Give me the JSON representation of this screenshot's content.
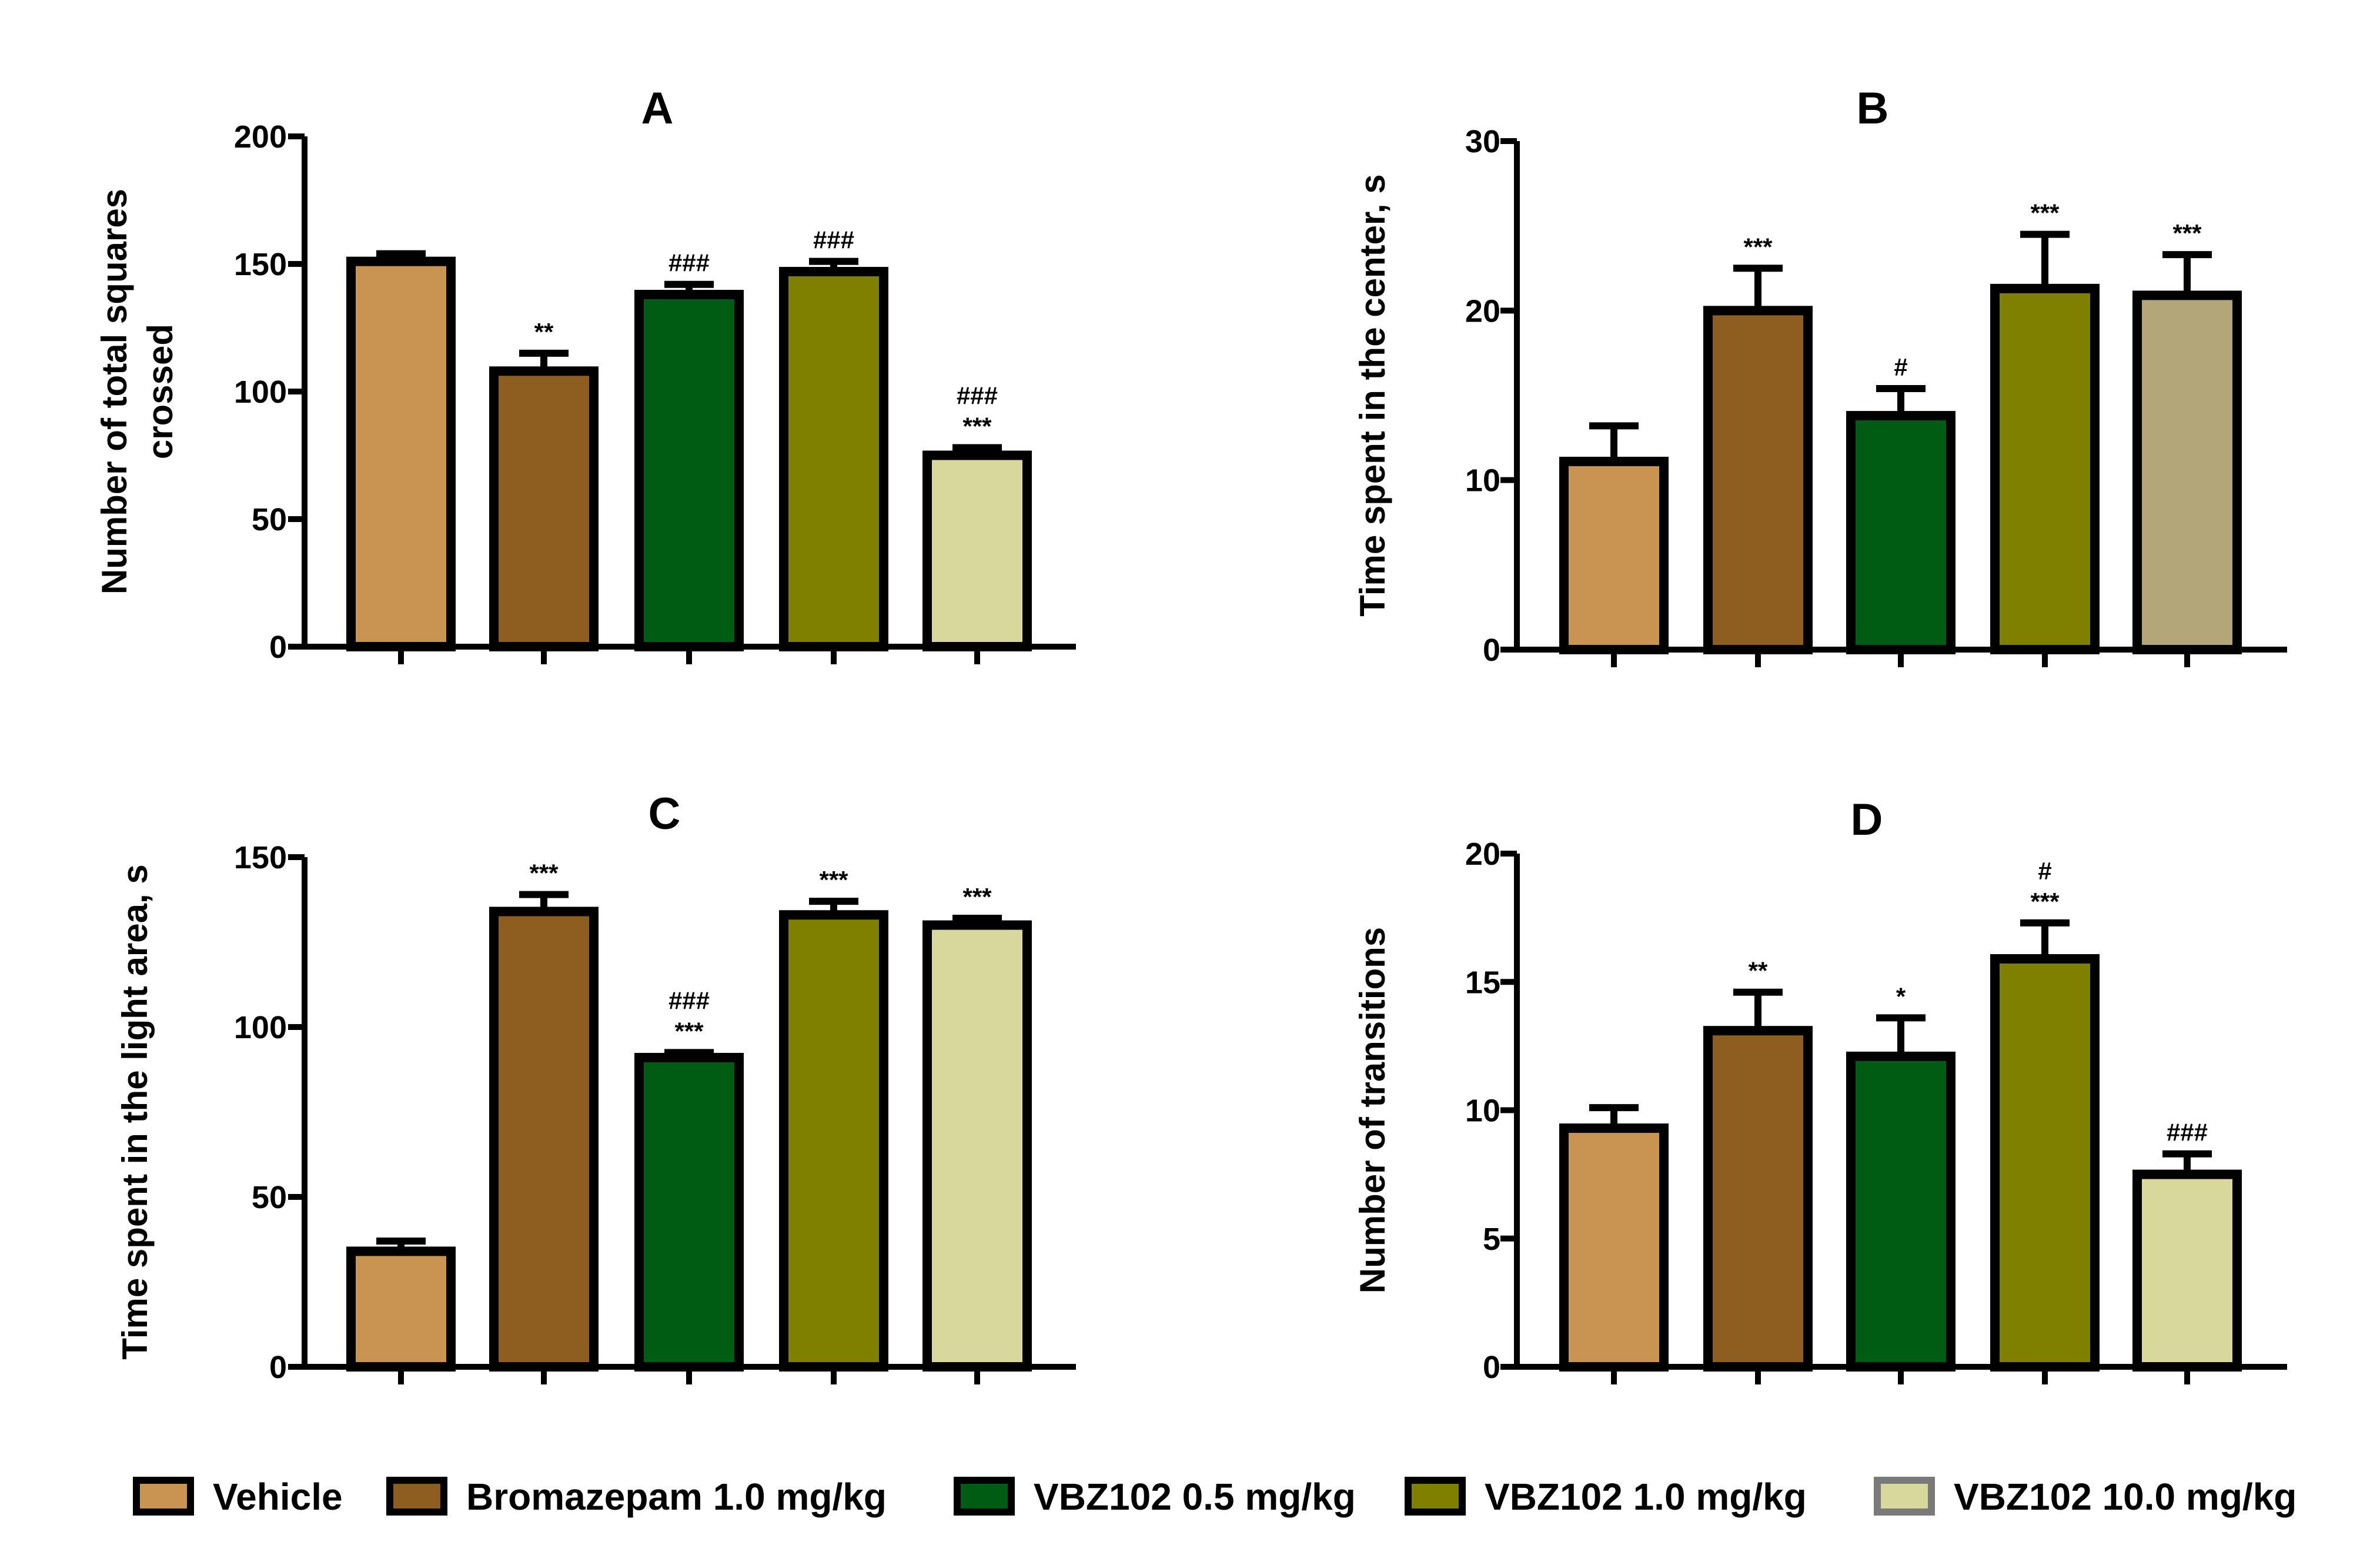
{
  "chart_data": [
    {
      "type": "bar",
      "panel": "A",
      "title": "A",
      "ylabel": [
        "Number of total squares",
        "crossed"
      ],
      "ylim": [
        0,
        200
      ],
      "yticks": [
        0,
        50,
        100,
        150,
        200
      ],
      "categories": [
        "Vehicle",
        "Bromazepam 1.0 mg/kg",
        "VBZ102 0.5 mg/kg",
        "VBZ102 1.0 mg/kg",
        "VBZ102 10.0 mg/kg"
      ],
      "values": [
        151,
        108,
        138,
        147,
        75
      ],
      "errors": [
        3,
        7,
        4,
        4,
        3
      ],
      "annotations": [
        [],
        [
          "**"
        ],
        [
          "###"
        ],
        [
          "###"
        ],
        [
          "###",
          "***"
        ]
      ]
    },
    {
      "type": "bar",
      "panel": "B",
      "title": "B",
      "ylabel": [
        "Time spent in the center, s"
      ],
      "ylim": [
        0,
        30
      ],
      "yticks": [
        0,
        10,
        20,
        30
      ],
      "categories": [
        "Vehicle",
        "Bromazepam 1.0 mg/kg",
        "VBZ102 0.5 mg/kg",
        "VBZ102 1.0 mg/kg",
        "VBZ102 10.0 mg/kg"
      ],
      "values": [
        11.1,
        20.0,
        13.8,
        21.3,
        20.9
      ],
      "errors": [
        2.1,
        2.5,
        1.6,
        3.2,
        2.4
      ],
      "annotations": [
        [],
        [
          "***"
        ],
        [
          "#"
        ],
        [
          "***"
        ],
        [
          "***"
        ]
      ]
    },
    {
      "type": "bar",
      "panel": "C",
      "title": "C",
      "ylabel": [
        "Time spent in the light area, s"
      ],
      "ylim": [
        0,
        150
      ],
      "yticks": [
        0,
        50,
        100,
        150
      ],
      "categories": [
        "Vehicle",
        "Bromazepam 1.0 mg/kg",
        "VBZ102 0.5 mg/kg",
        "VBZ102 1.0 mg/kg",
        "VBZ102 10.0 mg/kg"
      ],
      "values": [
        34,
        134,
        91,
        133,
        130
      ],
      "errors": [
        3,
        5,
        1.5,
        4,
        2
      ],
      "annotations": [
        [],
        [
          "***"
        ],
        [
          "###",
          "***"
        ],
        [
          "***"
        ],
        [
          "***"
        ]
      ]
    },
    {
      "type": "bar",
      "panel": "D",
      "title": "D",
      "ylabel": [
        "Number of transitions"
      ],
      "ylim": [
        0,
        20
      ],
      "yticks": [
        0,
        5,
        10,
        15,
        20
      ],
      "categories": [
        "Vehicle",
        "Bromazepam 1.0 mg/kg",
        "VBZ102 0.5 mg/kg",
        "VBZ102 1.0 mg/kg",
        "VBZ102 10.0 mg/kg"
      ],
      "values": [
        9.3,
        13.1,
        12.1,
        15.9,
        7.5
      ],
      "errors": [
        0.8,
        1.5,
        1.5,
        1.4,
        0.8
      ],
      "annotations": [
        [],
        [
          "**"
        ],
        [
          "*"
        ],
        [
          "#",
          "***"
        ],
        [
          "###"
        ]
      ]
    }
  ],
  "legend": [
    {
      "label": "Vehicle",
      "color": "#C99352"
    },
    {
      "label": "Bromazepam 1.0 mg/kg",
      "color": "#8E5E20"
    },
    {
      "label": "VBZ102 0.5 mg/kg",
      "color": "#005C13"
    },
    {
      "label": "VBZ102 1.0 mg/kg",
      "color": "#7F7F00"
    },
    {
      "label": "VBZ102 10.0 mg/kg",
      "color": "#D8D89C"
    }
  ],
  "bar_colors": {
    "A": [
      "#C99352",
      "#8E5E20",
      "#005C13",
      "#7F7F00",
      "#D8D89C"
    ],
    "B": [
      "#C99352",
      "#8E5E20",
      "#005C13",
      "#7F7F00",
      "#B3A77A"
    ],
    "C": [
      "#C99352",
      "#8E5E20",
      "#005C13",
      "#7F7F00",
      "#D8D89C"
    ],
    "D": [
      "#C99352",
      "#8E5E20",
      "#005C13",
      "#7F7F00",
      "#D8D89C"
    ]
  }
}
